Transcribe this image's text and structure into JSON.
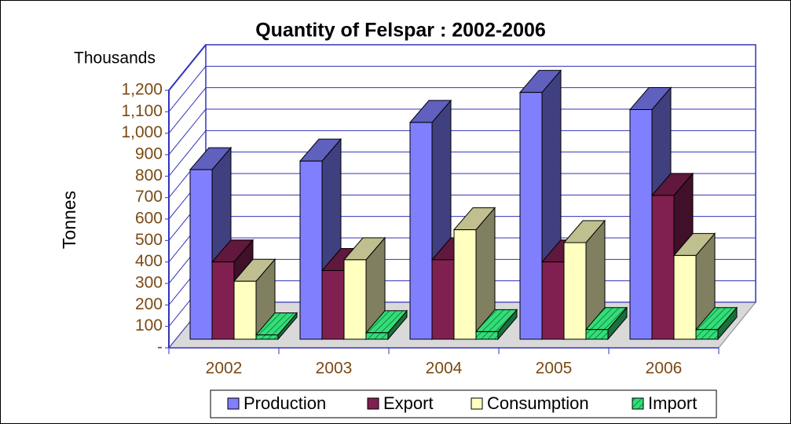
{
  "chart_data": {
    "type": "bar3d",
    "title": "Quantity of Felspar : 2002-2006",
    "y_label": "Tonnes",
    "y_unit": "Thousands",
    "categories": [
      "2002",
      "2003",
      "2004",
      "2005",
      "2006"
    ],
    "series": [
      {
        "name": "Production",
        "color": "#8080ff",
        "values": [
          790,
          830,
          1010,
          1150,
          1070
        ]
      },
      {
        "name": "Export",
        "color": "#802050",
        "values": [
          360,
          320,
          370,
          360,
          670
        ]
      },
      {
        "name": "Consumption",
        "color": "#ffffc0",
        "values": [
          270,
          370,
          510,
          450,
          390
        ]
      },
      {
        "name": "Import",
        "color": "#33dd77",
        "values": [
          20,
          30,
          35,
          45,
          45
        ]
      }
    ],
    "ylim": [
      0,
      1200
    ],
    "yticks": [
      {
        "value": 0,
        "label": "-"
      },
      100,
      200,
      300,
      400,
      500,
      600,
      700,
      800,
      900,
      {
        "value": 1000,
        "label": "1,000"
      },
      {
        "value": 1100,
        "label": "1,100"
      },
      {
        "value": 1200,
        "label": "1,200"
      }
    ],
    "grid": true,
    "legend": "bottom"
  }
}
